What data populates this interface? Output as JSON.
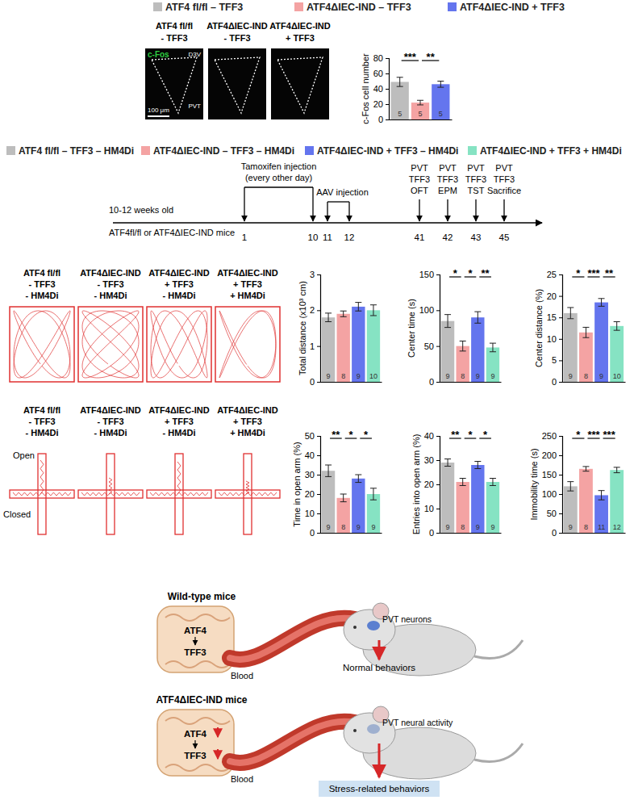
{
  "chart_data": [
    {
      "type": "bar",
      "ylabel": "c-Fos cell number",
      "categories": [
        null,
        null,
        null
      ],
      "values": [
        49,
        22,
        46
      ],
      "errors": [
        6,
        3,
        4
      ],
      "n": [
        5,
        5,
        5
      ],
      "colors": [
        "#bdbdbd",
        "#f4a3a3",
        "#6475ee"
      ],
      "ylim": [
        0,
        80
      ],
      "yticks": [
        0,
        20,
        40,
        60,
        80
      ],
      "tick_labels": "y",
      "significance": [
        {
          "from": 0,
          "to": 1,
          "label": "***"
        },
        {
          "from": 1,
          "to": 2,
          "label": "**"
        }
      ]
    },
    {
      "type": "bar",
      "ylabel": "Total distance (x10³ cm)",
      "categories": [
        null,
        null,
        null,
        null
      ],
      "values": [
        1.8,
        1.9,
        2.1,
        2.0
      ],
      "errors": [
        0.12,
        0.08,
        0.12,
        0.15
      ],
      "n": [
        9,
        8,
        9,
        10
      ],
      "colors": [
        "#bdbdbd",
        "#f4a3a3",
        "#6475ee",
        "#86e3c3"
      ],
      "ylim": [
        0,
        3
      ],
      "yticks": [
        0,
        1,
        2,
        3
      ],
      "tick_labels": "y",
      "significance": []
    },
    {
      "type": "bar",
      "ylabel": "Center time (s)",
      "categories": [
        null,
        null,
        null,
        null
      ],
      "values": [
        85,
        50,
        90,
        48
      ],
      "errors": [
        9,
        7,
        8,
        6
      ],
      "n": [
        9,
        8,
        9,
        9
      ],
      "colors": [
        "#bdbdbd",
        "#f4a3a3",
        "#6475ee",
        "#86e3c3"
      ],
      "ylim": [
        0,
        150
      ],
      "yticks": [
        0,
        50,
        100,
        150
      ],
      "tick_labels": "y",
      "significance": [
        {
          "from": 0,
          "to": 1,
          "label": "*"
        },
        {
          "from": 1,
          "to": 2,
          "label": "*"
        },
        {
          "from": 2,
          "to": 3,
          "label": "**"
        }
      ]
    },
    {
      "type": "bar",
      "ylabel": "Center distance (%)",
      "categories": [
        null,
        null,
        null,
        null
      ],
      "values": [
        16,
        11.5,
        18.5,
        13
      ],
      "errors": [
        1.3,
        1.2,
        0.9,
        1.0
      ],
      "n": [
        9,
        8,
        9,
        10
      ],
      "colors": [
        "#bdbdbd",
        "#f4a3a3",
        "#6475ee",
        "#86e3c3"
      ],
      "ylim": [
        0,
        25
      ],
      "yticks": [
        0,
        5,
        10,
        15,
        20,
        25
      ],
      "tick_labels": "y",
      "significance": [
        {
          "from": 0,
          "to": 1,
          "label": "*"
        },
        {
          "from": 1,
          "to": 2,
          "label": "***"
        },
        {
          "from": 2,
          "to": 3,
          "label": "**"
        }
      ]
    },
    {
      "type": "bar",
      "ylabel": "Time in open arm (%)",
      "categories": [
        null,
        null,
        null,
        null
      ],
      "values": [
        32,
        18,
        28,
        20
      ],
      "errors": [
        3,
        2,
        2,
        3
      ],
      "n": [
        9,
        8,
        9,
        9
      ],
      "colors": [
        "#bdbdbd",
        "#f4a3a3",
        "#6475ee",
        "#86e3c3"
      ],
      "ylim": [
        0,
        50
      ],
      "yticks": [
        0,
        10,
        20,
        30,
        40,
        50
      ],
      "tick_labels": "y",
      "significance": [
        {
          "from": 0,
          "to": 1,
          "label": "**"
        },
        {
          "from": 1,
          "to": 2,
          "label": "*"
        },
        {
          "from": 2,
          "to": 3,
          "label": "*"
        }
      ]
    },
    {
      "type": "bar",
      "ylabel": "Entries into open arm (%)",
      "categories": [
        null,
        null,
        null,
        null
      ],
      "values": [
        29,
        21,
        28,
        21
      ],
      "errors": [
        1.5,
        1.5,
        1.5,
        1.5
      ],
      "n": [
        9,
        8,
        9,
        9
      ],
      "colors": [
        "#bdbdbd",
        "#f4a3a3",
        "#6475ee",
        "#86e3c3"
      ],
      "ylim": [
        0,
        40
      ],
      "yticks": [
        0,
        10,
        20,
        30,
        40
      ],
      "tick_labels": "y",
      "significance": [
        {
          "from": 0,
          "to": 1,
          "label": "**"
        },
        {
          "from": 1,
          "to": 2,
          "label": "*"
        },
        {
          "from": 2,
          "to": 3,
          "label": "*"
        }
      ]
    },
    {
      "type": "bar",
      "ylabel": "Immobility time (s)",
      "categories": [
        null,
        null,
        null,
        null
      ],
      "values": [
        120,
        165,
        97,
        162
      ],
      "errors": [
        12,
        6,
        12,
        7
      ],
      "n": [
        9,
        8,
        11,
        12
      ],
      "colors": [
        "#bdbdbd",
        "#f4a3a3",
        "#6475ee",
        "#86e3c3"
      ],
      "ylim": [
        0,
        250
      ],
      "yticks": [
        0,
        50,
        100,
        150,
        200,
        250
      ],
      "tick_labels": "y",
      "significance": [
        {
          "from": 0,
          "to": 1,
          "label": "*"
        },
        {
          "from": 1,
          "to": 2,
          "label": "***"
        },
        {
          "from": 2,
          "to": 3,
          "label": "***"
        }
      ]
    }
  ],
  "legends": [
    [
      {
        "label": "ATF4 fl/fl – TFF3",
        "color": "#bdbdbd"
      },
      {
        "label": "ATF4ΔIEC-IND – TFF3",
        "color": "#f4a3a3"
      },
      {
        "label": "ATF4ΔIEC-IND + TFF3",
        "color": "#6475ee"
      }
    ],
    [
      {
        "label": "ATF4 fl/fl – TFF3 – HM4Di",
        "color": "#bdbdbd"
      },
      {
        "label": "ATF4ΔIEC-IND – TFF3 – HM4Di",
        "color": "#f4a3a3"
      },
      {
        "label": "ATF4ΔIEC-IND + TFF3 – HM4Di",
        "color": "#6475ee"
      },
      {
        "label": "ATF4ΔIEC-IND + TFF3 + HM4Di",
        "color": "#86e3c3"
      }
    ]
  ],
  "images": {
    "labels": [
      [
        "ATF4 fl/fl",
        "- TFF3"
      ],
      [
        "ATF4ΔIEC-IND",
        "- TFF3"
      ],
      [
        "ATF4ΔIEC-IND",
        "+ TFF3"
      ]
    ],
    "stain": "c-Fos",
    "regions": [
      "D3V",
      "PVT"
    ],
    "scale_bar": "100 μm"
  },
  "timeline": {
    "start": [
      "10-12 weeks old",
      "ATF4fl/fl or ATF4ΔIEC-IND mice"
    ],
    "days": [
      1,
      10,
      11,
      12,
      41,
      42,
      43,
      45
    ],
    "spans": [
      {
        "from": 0,
        "to": 1,
        "label": [
          "Tamoxifen injection",
          "(every other day)"
        ]
      },
      {
        "from": 2,
        "to": 3,
        "label": [
          "AAV injection"
        ]
      }
    ],
    "events": [
      {
        "at": 4,
        "label": [
          "PVT",
          "TFF3",
          "OFT"
        ]
      },
      {
        "at": 5,
        "label": [
          "PVT",
          "TFF3",
          "EPM"
        ]
      },
      {
        "at": 6,
        "label": [
          "PVT",
          "TFF3",
          "TST"
        ]
      },
      {
        "at": 7,
        "label": [
          "PVT",
          "TFF3",
          "Sacrifice"
        ]
      }
    ]
  },
  "tracks": {
    "oft_labels": [
      [
        "ATF4 fl/fl",
        "- TFF3",
        "- HM4Di"
      ],
      [
        "ATF4ΔIEC-IND",
        "- TFF3",
        "- HM4Di"
      ],
      [
        "ATF4ΔIEC-IND",
        "+ TFF3",
        "- HM4Di"
      ],
      [
        "ATF4ΔIEC-IND",
        "+ TFF3",
        "+ HM4Di"
      ]
    ],
    "epm_labels": [
      [
        "ATF4 fl/fl",
        "- TFF3",
        "- HM4Di"
      ],
      [
        "ATF4ΔIEC-IND",
        "- TFF3",
        "- HM4Di"
      ],
      [
        "ATF4ΔIEC-IND",
        "+ TFF3",
        "- HM4Di"
      ],
      [
        "ATF4ΔIEC-IND",
        "+ TFF3",
        "+ HM4Di"
      ]
    ],
    "epm_arms": [
      "Open",
      "Closed"
    ]
  },
  "schematic": {
    "panels": [
      {
        "title": "Wild-type mice",
        "gene": "ATF4",
        "target": "TFF3",
        "vessel": "Blood",
        "brain": "PVT neurons",
        "outcome": "Normal behaviors",
        "decreased": false
      },
      {
        "title": "ATF4ΔIEC-IND mice",
        "gene": "ATF4",
        "target": "TFF3",
        "vessel": "Blood",
        "brain": "PVT neural activity",
        "outcome": "Stress-related behaviors",
        "decreased": true
      }
    ]
  }
}
